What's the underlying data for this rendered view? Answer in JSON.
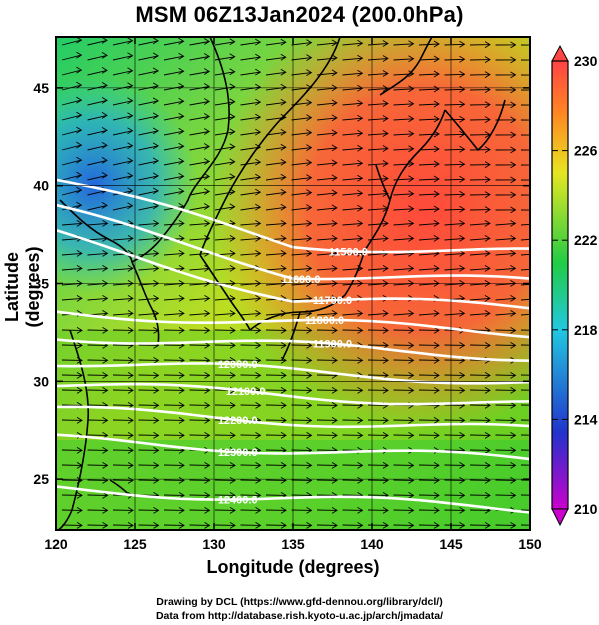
{
  "title": "MSM 06Z13Jan2024 (200.0hPa)",
  "axes": {
    "xlabel": "Longitude (degrees)",
    "ylabel": "Latitude  (degrees)",
    "x_ticks": [
      "120",
      "125",
      "130",
      "135",
      "140",
      "145",
      "150"
    ],
    "y_ticks": [
      "25",
      "30",
      "35",
      "40",
      "45"
    ],
    "xlim": [
      120,
      150
    ],
    "ylim": [
      22.4,
      47.6
    ]
  },
  "colorbar": {
    "ticks": [
      "230",
      "226",
      "222",
      "218",
      "214",
      "210"
    ],
    "range": [
      210,
      230
    ],
    "colors": [
      "#cc00cc",
      "#2233cc",
      "#22c8e0",
      "#22cc44",
      "#e6e622",
      "#ff8822",
      "#ff4444"
    ]
  },
  "contours": [
    {
      "label": "11500.0",
      "lat": 37.0
    },
    {
      "label": "11600.0",
      "lat": 35.5
    },
    {
      "label": "11700.0",
      "lat": 34.2
    },
    {
      "label": "11800.0",
      "lat": 33.0
    },
    {
      "label": "11900.0",
      "lat": 31.8
    },
    {
      "label": "12000.0",
      "lat": 30.5
    },
    {
      "label": "12100.0",
      "lat": 29.3
    },
    {
      "label": "12200.0",
      "lat": 28.0
    },
    {
      "label": "12300.0",
      "lat": 26.5
    },
    {
      "label": "12400.0",
      "lat": 24.0
    }
  ],
  "credits": {
    "line1": "Drawing by DCL (https://www.gfd-dennou.org/library/dcl/)",
    "line2": "Data from http://database.rish.kyoto-u.ac.jp/arch/jmadata/"
  }
}
